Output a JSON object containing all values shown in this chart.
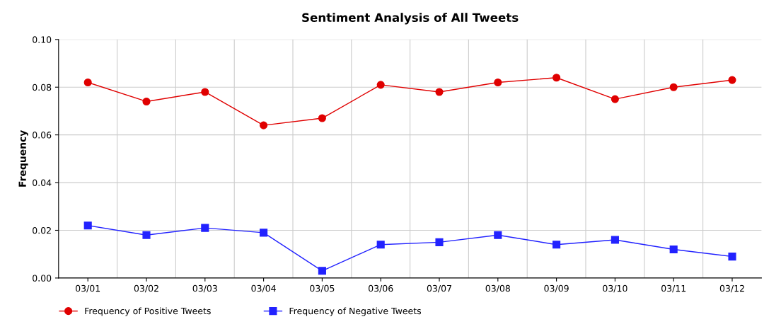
{
  "chart_data": {
    "type": "line",
    "title": "Sentiment Analysis of All Tweets",
    "ylabel": "Frequency",
    "categories": [
      "03/01",
      "03/02",
      "03/03",
      "03/04",
      "03/05",
      "03/06",
      "03/07",
      "03/08",
      "03/09",
      "03/10",
      "03/11",
      "03/12"
    ],
    "series": [
      {
        "name": "Frequency of Positive Tweets",
        "color": "#e00000",
        "marker": "circle",
        "values": [
          0.082,
          0.074,
          0.078,
          0.064,
          0.067,
          0.081,
          0.078,
          0.082,
          0.084,
          0.075,
          0.08,
          0.083
        ]
      },
      {
        "name": "Frequency of Negative Tweets",
        "color": "#2222ff",
        "marker": "square",
        "values": [
          0.022,
          0.018,
          0.021,
          0.019,
          0.003,
          0.014,
          0.015,
          0.018,
          0.014,
          0.016,
          0.012,
          0.009
        ]
      }
    ],
    "ylim": [
      0,
      0.1
    ],
    "yticks": [
      {
        "value": 0,
        "label": "0.00"
      },
      {
        "value": 0.02,
        "label": "0.02"
      },
      {
        "value": 0.04,
        "label": "0.04"
      },
      {
        "value": 0.06,
        "label": "0.06"
      },
      {
        "value": 0.08,
        "label": "0.08"
      },
      {
        "value": 0.1,
        "label": "0.10"
      }
    ],
    "grid": true,
    "legend": "bottom left",
    "line_style": "solid"
  }
}
